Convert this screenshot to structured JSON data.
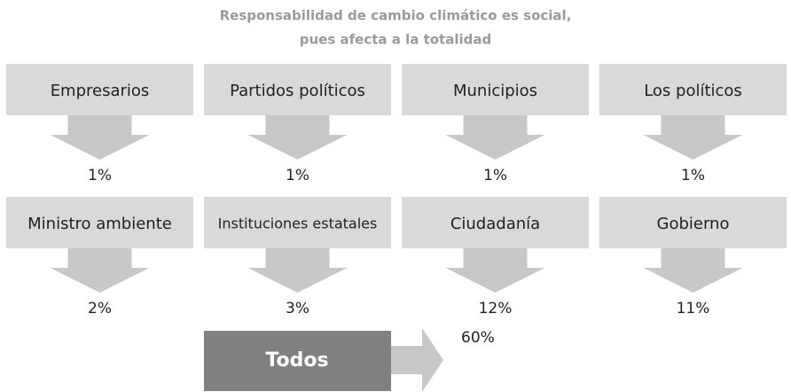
{
  "title": [
    "Responsabilidad de cambio climático es social,",
    "pues afecta a la totalidad"
  ],
  "nodes": [
    {
      "label": "Empresarios",
      "value": "1%"
    },
    {
      "label": "Partidos políticos",
      "value": "1%"
    },
    {
      "label": "Municipios",
      "value": "1%"
    },
    {
      "label": "Los políticos",
      "value": "1%"
    },
    {
      "label": "Ministro ambiente",
      "value": "2%"
    },
    {
      "label": "Instituciones estatales",
      "value": "3%"
    },
    {
      "label": "Ciudadanía",
      "value": "12%"
    },
    {
      "label": "Gobierno",
      "value": "11%"
    }
  ],
  "total": {
    "label": "Todos",
    "value": "60%"
  }
}
